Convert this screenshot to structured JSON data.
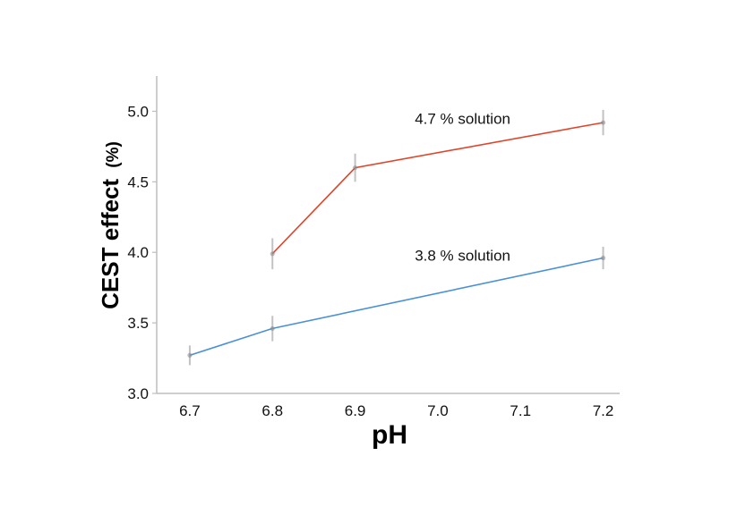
{
  "chart_data": {
    "type": "line",
    "xlabel": "pH",
    "ylabel_main": "CEST effect",
    "ylabel_unit": "(%)",
    "xlim": [
      6.66,
      7.22
    ],
    "ylim": [
      3.0,
      5.25
    ],
    "xticks": [
      6.7,
      6.8,
      6.9,
      7.0,
      7.1,
      7.2
    ],
    "xtick_labels": [
      "6.7",
      "6.8",
      "6.9",
      "7.0",
      "7.1",
      "7.2"
    ],
    "yticks": [
      3.0,
      3.5,
      4.0,
      4.5,
      5.0
    ],
    "ytick_labels": [
      "3.0",
      "3.5",
      "4.0",
      "4.5",
      "5.0"
    ],
    "grid": false,
    "series": [
      {
        "color": "#e0452b",
        "x": [
          6.8,
          6.9,
          7.2
        ],
        "y": [
          3.99,
          4.6,
          4.92
        ],
        "err": [
          0.11,
          0.1,
          0.09
        ]
      },
      {
        "color": "#4a90d9",
        "x": [
          6.7,
          6.8,
          7.2
        ],
        "y": [
          3.27,
          3.46,
          3.96
        ],
        "err": [
          0.07,
          0.09,
          0.08
        ]
      }
    ],
    "annotations": [
      {
        "text": "4.7 % solution",
        "x": 7.03,
        "y": 4.95
      },
      {
        "text": "3.8 % solution",
        "x": 7.03,
        "y": 3.98
      }
    ]
  }
}
